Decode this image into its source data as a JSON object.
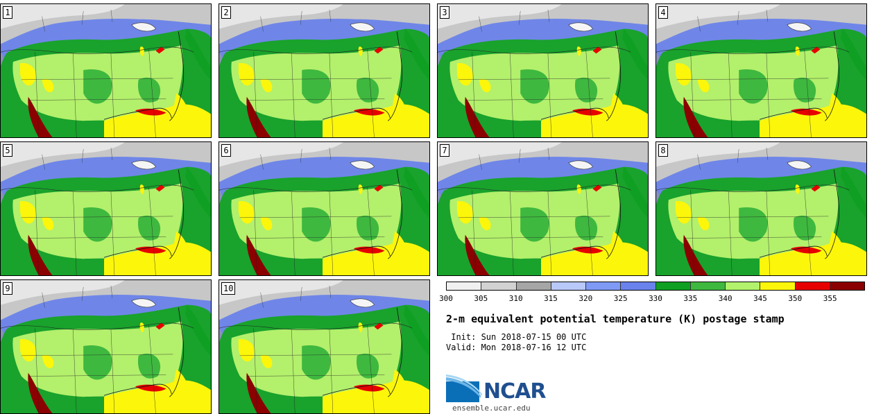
{
  "panels": [
    {
      "label": "1"
    },
    {
      "label": "2"
    },
    {
      "label": "3"
    },
    {
      "label": "4"
    },
    {
      "label": "5"
    },
    {
      "label": "6"
    },
    {
      "label": "7"
    },
    {
      "label": "8"
    },
    {
      "label": "9"
    },
    {
      "label": "10"
    }
  ],
  "colorbar": {
    "colors": [
      "#f0f0f0",
      "#d2d2d2",
      "#a6a6a6",
      "#b8c8f8",
      "#7f9af5",
      "#6a82ec",
      "#0f9f22",
      "#3fb83f",
      "#b2f26c",
      "#fcf60b",
      "#e60000",
      "#8b0000"
    ],
    "ticks": [
      "300",
      "305",
      "310",
      "315",
      "320",
      "325",
      "330",
      "335",
      "340",
      "345",
      "350",
      "355"
    ]
  },
  "title": "2-m equivalent potential temperature (K) postage stamp",
  "init": " Init: Sun 2018-07-15 00 UTC",
  "valid": "Valid: Mon 2018-07-16 12 UTC",
  "logo_text": "NCAR",
  "website": "ensemble.ucar.edu"
}
